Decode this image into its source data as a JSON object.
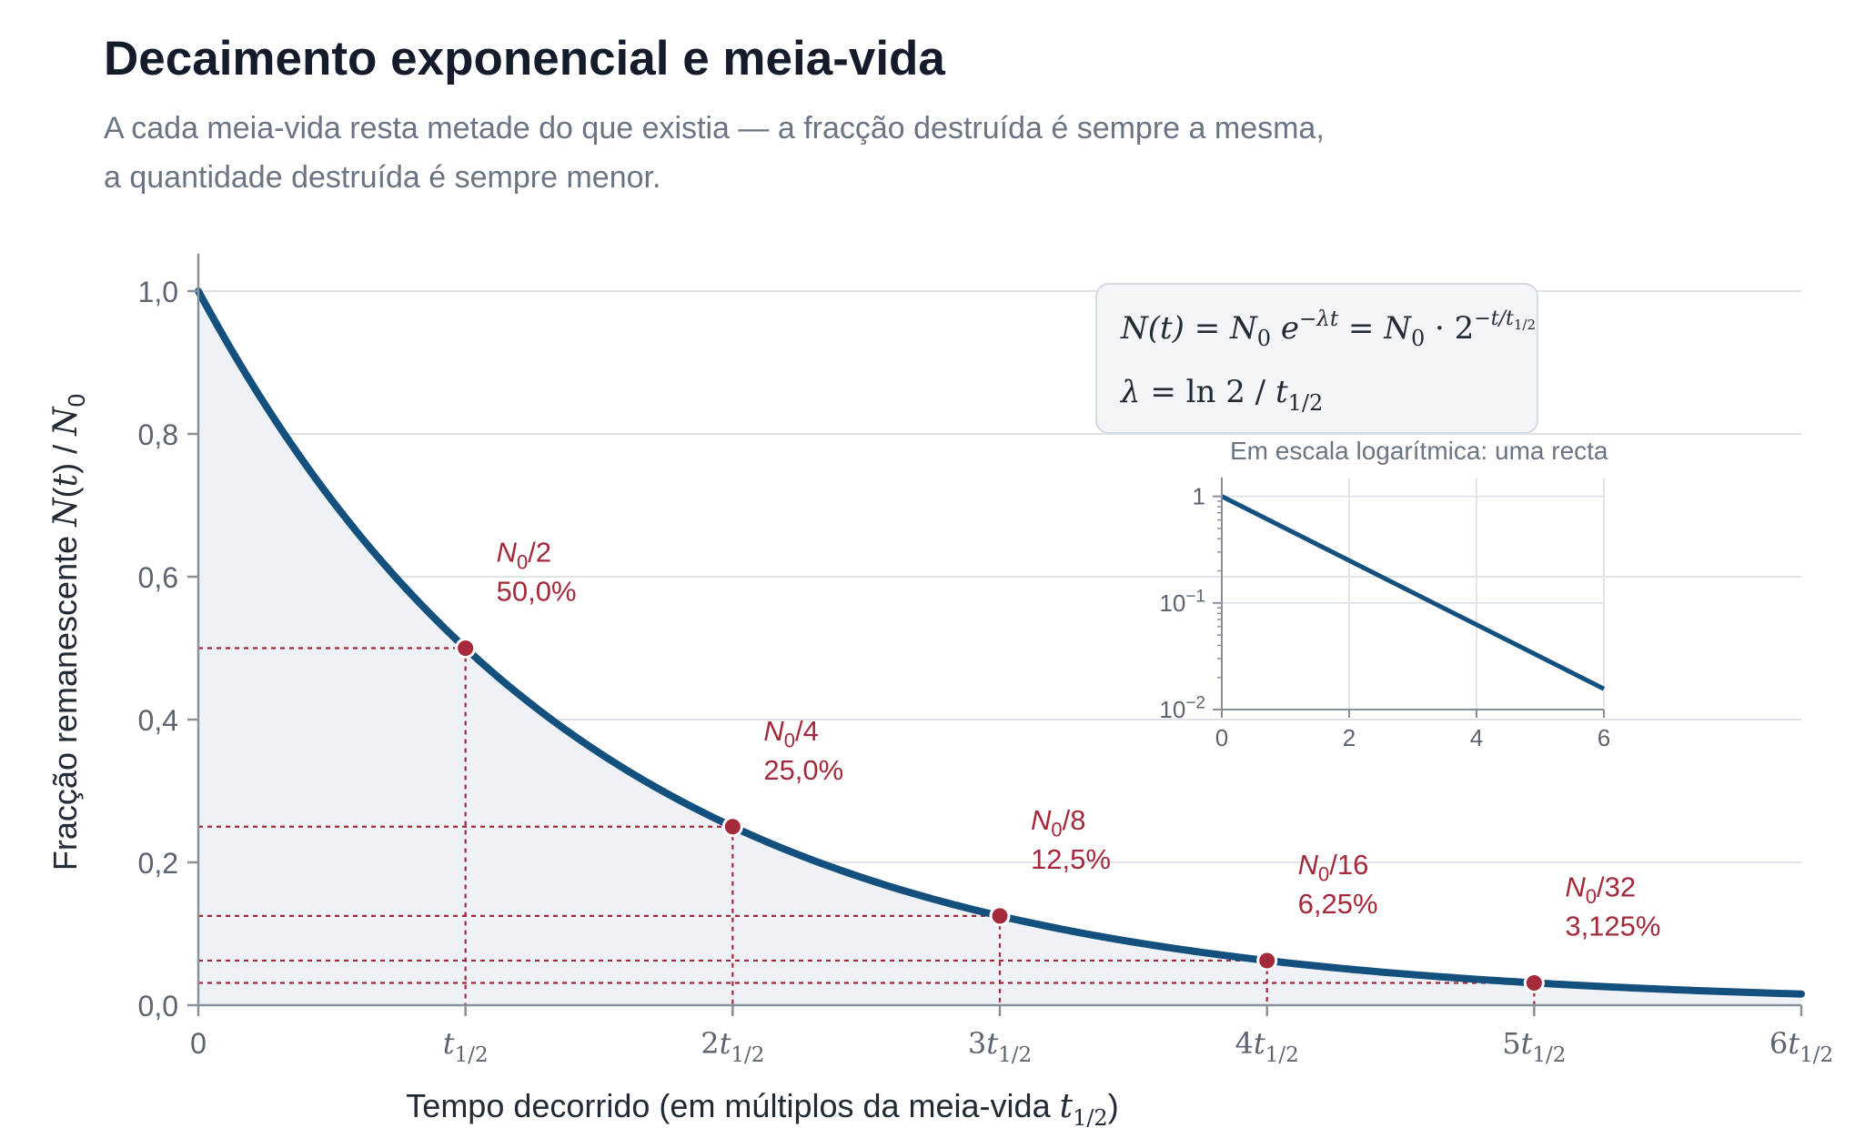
{
  "title": "Decaimento exponencial e meia-vida",
  "subtitle_lines": [
    "A cada meia-vida resta metade do que existia — a fracção destruída é sempre a mesma,",
    "a quantidade destruída é sempre menor."
  ],
  "colors": {
    "curve": "#14507e",
    "fill": "#eef2f6",
    "marker": "#a3293b",
    "grid": "#dfe3e8",
    "axis": "#8a9099",
    "text": "#5c6470",
    "title": "#141c2b"
  },
  "chart_data": [
    {
      "type": "line",
      "function": "N(t)/N0 = 2^(-t/t_half)",
      "xlabel": "Tempo decorrido (em múltiplos da meia-vida t1/2)",
      "ylabel": "Fracção remanescente  N(t) / N0",
      "xlim": [
        0,
        6
      ],
      "ylim": [
        0,
        1.05
      ],
      "x_ticks": [
        0,
        1,
        2,
        3,
        4,
        5,
        6
      ],
      "x_tick_labels": [
        "0",
        "t1/2",
        "2t1/2",
        "3t1/2",
        "4t1/2",
        "5t1/2",
        "6t1/2"
      ],
      "y_ticks": [
        0,
        0.2,
        0.4,
        0.6,
        0.8,
        1.0
      ],
      "y_tick_labels": [
        "0,0",
        "0,2",
        "0,4",
        "0,6",
        "0,8",
        "1,0"
      ],
      "grid": "horizontal",
      "area_fill": true,
      "highlight_points": [
        {
          "x": 1,
          "y": 0.5,
          "label": "N0/2",
          "percent": "50,0%"
        },
        {
          "x": 2,
          "y": 0.25,
          "label": "N0/4",
          "percent": "25,0%"
        },
        {
          "x": 3,
          "y": 0.125,
          "label": "N0/8",
          "percent": "12,5%"
        },
        {
          "x": 4,
          "y": 0.0625,
          "label": "N0/16",
          "percent": "6,25%"
        },
        {
          "x": 5,
          "y": 0.03125,
          "label": "N0/32",
          "percent": "3,125%"
        }
      ],
      "formula": {
        "line1": "N(t) = N0 e^(−λt) = N0 · 2^(−t/t1/2)",
        "line2": "λ = ln 2 / t1/2"
      }
    },
    {
      "type": "line",
      "title": "Em escala logarítmica: uma recta",
      "yscale": "log",
      "xlim": [
        0,
        6
      ],
      "ylim": [
        0.01,
        1.5
      ],
      "x_ticks": [
        0,
        2,
        4,
        6
      ],
      "x_tick_labels": [
        "0",
        "2",
        "4",
        "6"
      ],
      "y_tick_labels": [
        "1",
        "10^-1",
        "10^-2"
      ],
      "grid": true,
      "x": [
        0,
        6
      ],
      "y": [
        1,
        0.015625
      ]
    }
  ]
}
